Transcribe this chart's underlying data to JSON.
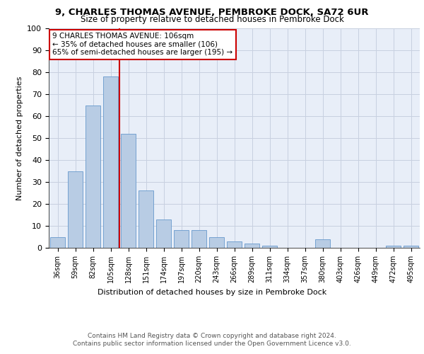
{
  "title1": "9, CHARLES THOMAS AVENUE, PEMBROKE DOCK, SA72 6UR",
  "title2": "Size of property relative to detached houses in Pembroke Dock",
  "xlabel": "Distribution of detached houses by size in Pembroke Dock",
  "ylabel": "Number of detached properties",
  "categories": [
    "36sqm",
    "59sqm",
    "82sqm",
    "105sqm",
    "128sqm",
    "151sqm",
    "174sqm",
    "197sqm",
    "220sqm",
    "243sqm",
    "266sqm",
    "289sqm",
    "311sqm",
    "334sqm",
    "357sqm",
    "380sqm",
    "403sqm",
    "426sqm",
    "449sqm",
    "472sqm",
    "495sqm"
  ],
  "values": [
    5,
    35,
    65,
    78,
    52,
    26,
    13,
    8,
    8,
    5,
    3,
    2,
    1,
    0,
    0,
    4,
    0,
    0,
    0,
    1,
    1
  ],
  "bar_color": "#b8cce4",
  "bar_edge_color": "#6699cc",
  "vline_x": 3.5,
  "vline_color": "#cc0000",
  "annotation_title": "9 CHARLES THOMAS AVENUE: 106sqm",
  "annotation_line1": "← 35% of detached houses are smaller (106)",
  "annotation_line2": "65% of semi-detached houses are larger (195) →",
  "annotation_box_color": "#ffffff",
  "annotation_box_edge": "#cc0000",
  "footer1": "Contains HM Land Registry data © Crown copyright and database right 2024.",
  "footer2": "Contains public sector information licensed under the Open Government Licence v3.0.",
  "bg_color": "#e8eef8",
  "grid_color": "#c8d0e0",
  "ylim": [
    0,
    100
  ],
  "yticks": [
    0,
    10,
    20,
    30,
    40,
    50,
    60,
    70,
    80,
    90,
    100
  ]
}
